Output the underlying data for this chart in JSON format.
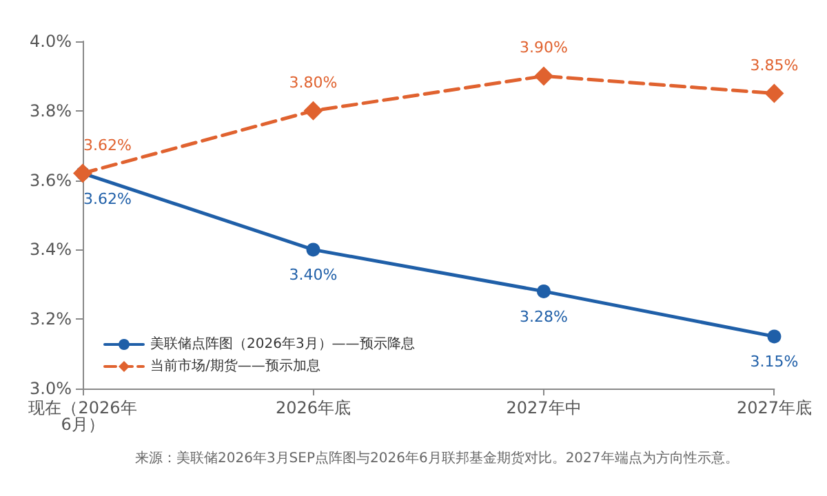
{
  "chart_data": {
    "type": "line",
    "categories": [
      "现在（2026年6月）",
      "2026年底",
      "2027年中",
      "2027年底"
    ],
    "series": [
      {
        "name": "美联储点阵图（2026年3月）——预示降息",
        "color": "#1f5fa8",
        "values": [
          3.62,
          3.4,
          3.28,
          3.15
        ],
        "value_labels": [
          "3.62%",
          "3.40%",
          "3.28%",
          "3.15%"
        ],
        "marker": "circle",
        "line_style": "solid"
      },
      {
        "name": "当前市场/期货——预示加息",
        "color": "#e0622f",
        "values": [
          3.62,
          3.8,
          3.9,
          3.85
        ],
        "value_labels": [
          "3.62%",
          "3.80%",
          "3.90%",
          "3.85%"
        ],
        "marker": "diamond",
        "line_style": "dashed"
      }
    ],
    "ylim": [
      3.0,
      4.0
    ],
    "yticks": [
      {
        "value": 3.0,
        "label": "3.0%"
      },
      {
        "value": 3.2,
        "label": "3.2%"
      },
      {
        "value": 3.4,
        "label": "3.4%"
      },
      {
        "value": 3.6,
        "label": "3.6%"
      },
      {
        "value": 3.8,
        "label": "3.8%"
      },
      {
        "value": 4.0,
        "label": "4.0%"
      }
    ],
    "grid": false,
    "legend": "bottom left",
    "annotations": [
      "来源：美联储2026年3月SEP点阵图与2026年6月联邦基金期货对比。2027年端点为方向性示意。"
    ]
  }
}
